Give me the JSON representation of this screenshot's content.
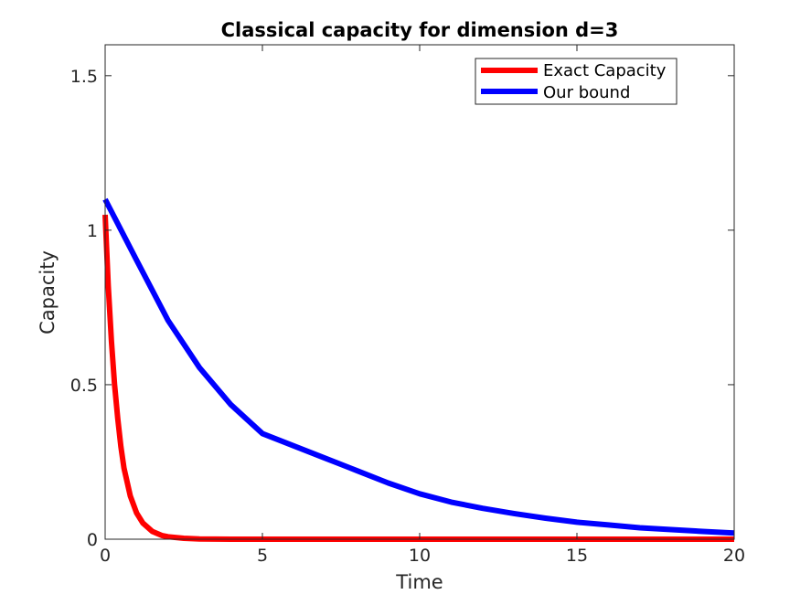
{
  "chart_data": {
    "type": "line",
    "title": "Classical capacity for dimension d=3",
    "xlabel": "Time",
    "ylabel": "Capacity",
    "xlim": [
      0,
      20
    ],
    "ylim": [
      0,
      1.6
    ],
    "xticks": [
      0,
      5,
      10,
      15,
      20
    ],
    "xtick_labels": [
      "0",
      "5",
      "10",
      "15",
      "20"
    ],
    "yticks": [
      0,
      0.5,
      1,
      1.5
    ],
    "ytick_labels": [
      "0",
      "0.5",
      "1",
      "1.5"
    ],
    "grid": false,
    "legend_position": "top-right",
    "series": [
      {
        "name": "Exact Capacity",
        "color": "#ff0000",
        "x": [
          0,
          0.1,
          0.2,
          0.3,
          0.4,
          0.5,
          0.6,
          0.8,
          1,
          1.2,
          1.5,
          1.8,
          2,
          2.5,
          3,
          3.5,
          4,
          5,
          6,
          8,
          10,
          12,
          15,
          18,
          20
        ],
        "y": [
          1.05,
          0.82,
          0.64,
          0.5,
          0.39,
          0.3,
          0.23,
          0.14,
          0.085,
          0.052,
          0.025,
          0.012,
          0.008,
          0.003,
          0.001,
          0.0004,
          0,
          0,
          0,
          0,
          0,
          0,
          0,
          0,
          0
        ]
      },
      {
        "name": "Our bound",
        "color": "#0000ff",
        "x": [
          0,
          1,
          2,
          3,
          4,
          5,
          6,
          7,
          8,
          9,
          10,
          11,
          12,
          13,
          14,
          15,
          16,
          17,
          18,
          19,
          20
        ],
        "y": [
          1.1,
          0.903,
          0.708,
          0.555,
          0.435,
          0.342,
          0.302,
          0.262,
          0.222,
          0.182,
          0.147,
          0.12,
          0.1,
          0.083,
          0.068,
          0.055,
          0.046,
          0.037,
          0.031,
          0.025,
          0.02
        ]
      }
    ]
  }
}
